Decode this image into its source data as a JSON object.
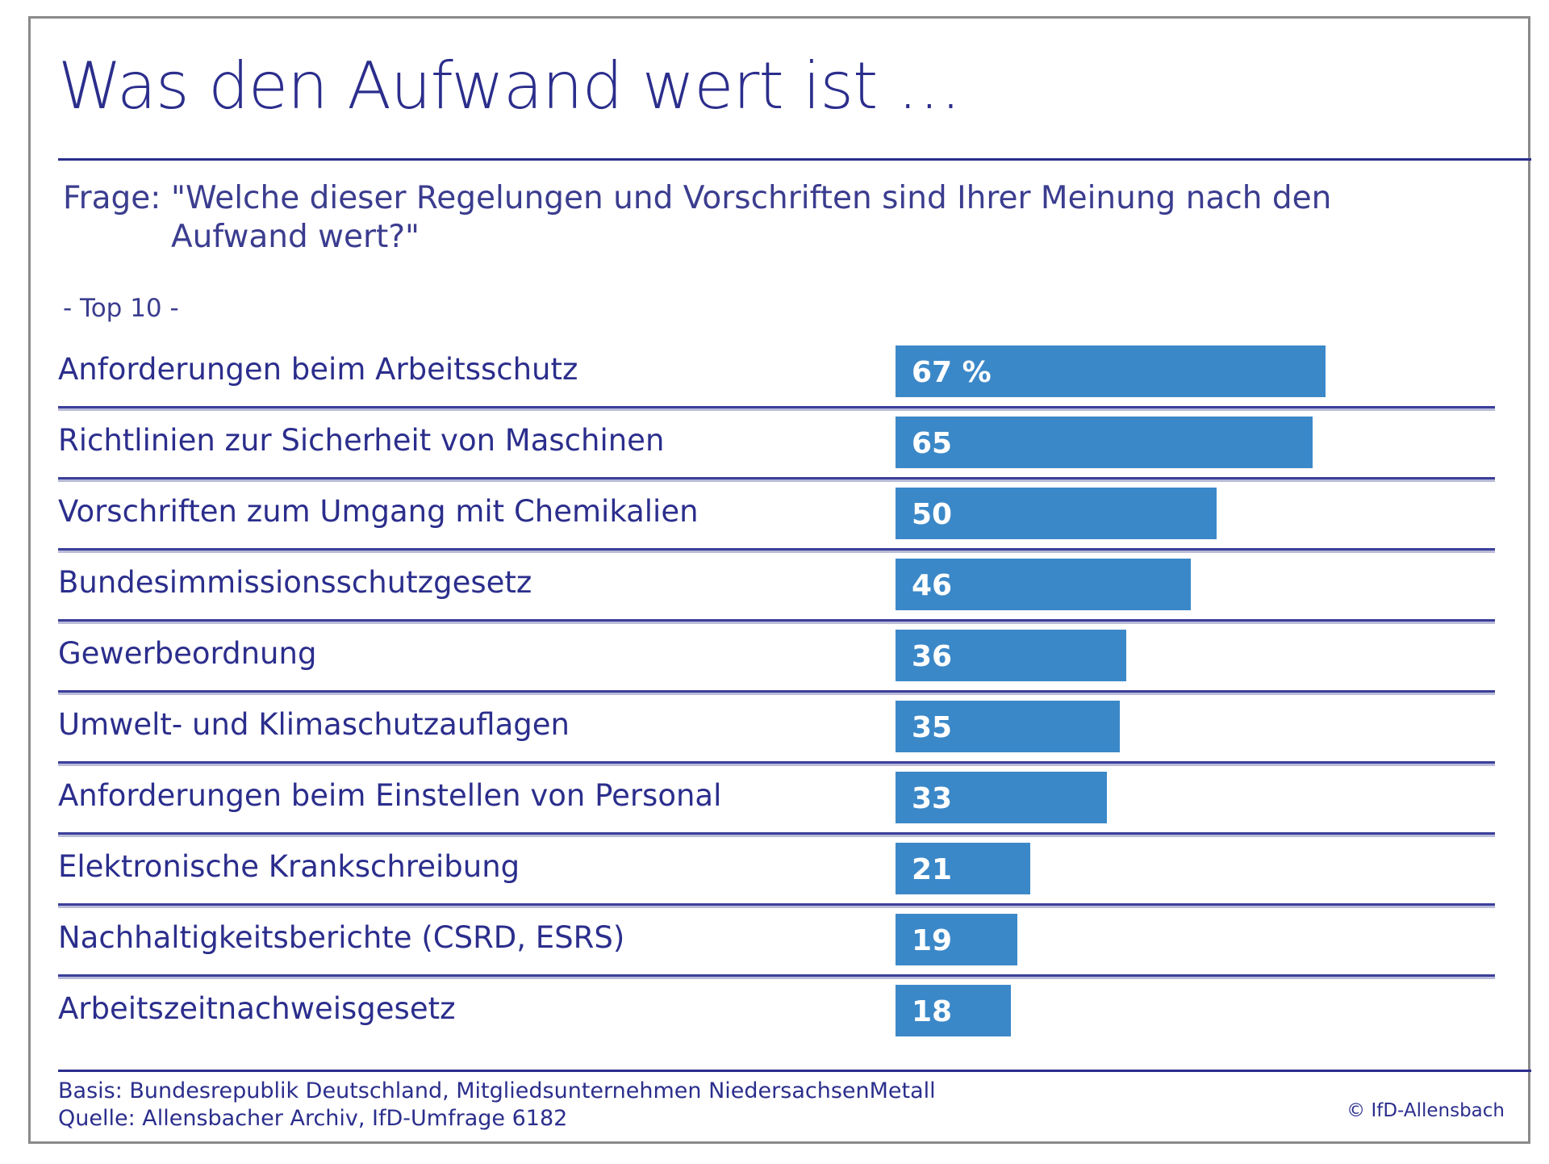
{
  "header": {
    "title": "Was den Aufwand wert ist …",
    "question_label": "Frage:",
    "question_text": "\"Welche dieser Regelungen und Vorschriften sind Ihrer Meinung nach den Aufwand wert?\"",
    "subtitle": "- Top 10 -"
  },
  "colors": {
    "text": "#2b2e8c",
    "bar": "#3b88c8",
    "rule": "#2b2e8c",
    "frame": "#8a8a8a"
  },
  "chart_data": {
    "type": "bar",
    "orientation": "horizontal",
    "title": "Was den Aufwand wert ist …",
    "unit": "%",
    "categories": [
      "Anforderungen beim Arbeitsschutz",
      "Richtlinien zur Sicherheit von Maschinen",
      "Vorschriften zum Umgang mit Chemikalien",
      "Bundesimmissionsschutzgesetz",
      "Gewerbeordnung",
      "Umwelt- und Klimaschutzauflagen",
      "Anforderungen beim Einstellen von Personal",
      "Elektronische Krankschreibung",
      "Nachhaltigkeitsberichte (CSRD, ESRS)",
      "Arbeitszeitnachweisgesetz"
    ],
    "values": [
      67,
      65,
      50,
      46,
      36,
      35,
      33,
      21,
      19,
      18
    ],
    "value_labels": [
      "67 %",
      "65",
      "50",
      "46",
      "36",
      "35",
      "33",
      "21",
      "19",
      "18"
    ],
    "grid": false
  },
  "footer": {
    "basis": "Basis: Bundesrepublik Deutschland, Mitgliedsunternehmen NiedersachsenMetall",
    "source": "Quelle: Allensbacher Archiv, IfD-Umfrage 6182",
    "copyright": "© IfD-Allensbach"
  }
}
